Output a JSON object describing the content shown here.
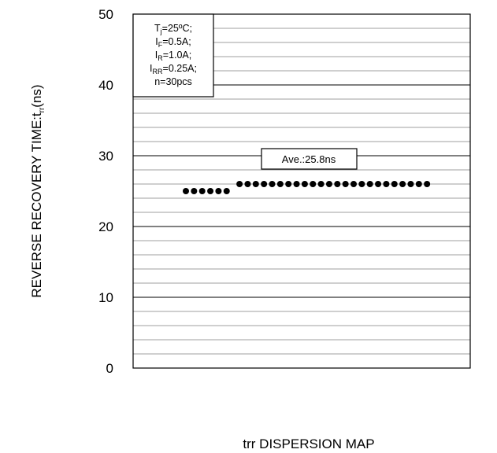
{
  "chart_data": {
    "type": "scatter",
    "title": "",
    "xlabel": "trr DISPERSION MAP",
    "ylabel": "REVERSE RECOVERY TIME:t",
    "ylabel_sub": "rr",
    "ylabel_unit": "(ns)",
    "ylim": [
      0,
      50
    ],
    "y_ticks": [
      "0",
      "10",
      "20",
      "30",
      "40",
      "50"
    ],
    "minor_gridline_step": 2,
    "grid": true,
    "sample_index": [
      1,
      2,
      3,
      4,
      5,
      6,
      7,
      8,
      9,
      10,
      11,
      12,
      13,
      14,
      15,
      16,
      17,
      18,
      19,
      20,
      21,
      22,
      23,
      24,
      25,
      26,
      27,
      28,
      29,
      30
    ],
    "values": [
      25,
      25,
      25,
      25,
      25,
      25,
      26,
      26,
      26,
      26,
      26,
      26,
      26,
      26,
      26,
      26,
      26,
      26,
      26,
      26,
      26,
      26,
      26,
      26,
      26,
      26,
      26,
      26,
      26,
      26
    ],
    "conditions": [
      {
        "main": "T",
        "sub": "j",
        "rest": "=25ºC;"
      },
      {
        "main": "I",
        "sub": "F",
        "rest": "=0.5A;"
      },
      {
        "main": "I",
        "sub": "R",
        "rest": "=1.0A;"
      },
      {
        "main": "I",
        "sub": "RR",
        "rest": "=0.25A;"
      },
      {
        "main": "n=30pcs",
        "sub": "",
        "rest": ""
      }
    ],
    "average_label": "Ave.:25.8ns"
  }
}
